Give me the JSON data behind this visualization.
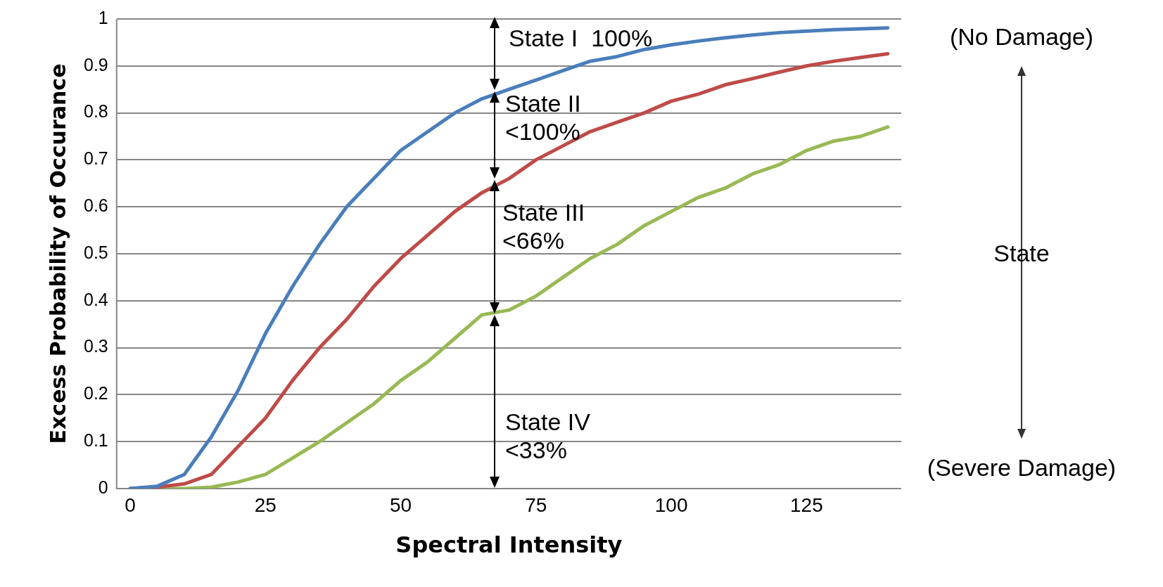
{
  "chart_data": {
    "type": "line",
    "xlabel": "Spectral Intensity",
    "ylabel": "Excess Probability of Occurance",
    "xlim": [
      -2.5,
      142.5
    ],
    "xticks": [
      0,
      25,
      50,
      75,
      100,
      125
    ],
    "ylim": [
      0,
      1
    ],
    "yticks": [
      0,
      0.1,
      0.2,
      0.3,
      0.4,
      0.5,
      0.6,
      0.7,
      0.8,
      0.9,
      1
    ],
    "x": [
      0,
      5,
      10,
      15,
      20,
      25,
      30,
      35,
      40,
      45,
      50,
      55,
      60,
      65,
      70,
      75,
      80,
      85,
      90,
      95,
      100,
      105,
      110,
      115,
      120,
      125,
      130,
      135,
      140
    ],
    "series": [
      {
        "color": "#4a7ebb",
        "values": [
          0,
          0.005,
          0.03,
          0.11,
          0.21,
          0.33,
          0.43,
          0.52,
          0.6,
          0.66,
          0.72,
          0.76,
          0.8,
          0.83,
          0.85,
          0.87,
          0.89,
          0.91,
          0.92,
          0.935,
          0.945,
          0.953,
          0.96,
          0.966,
          0.971,
          0.974,
          0.977,
          0.979,
          0.981
        ]
      },
      {
        "color": "#be4b48",
        "values": [
          0,
          0.003,
          0.01,
          0.03,
          0.09,
          0.15,
          0.23,
          0.3,
          0.36,
          0.43,
          0.49,
          0.54,
          0.59,
          0.63,
          0.66,
          0.7,
          0.73,
          0.76,
          0.78,
          0.8,
          0.825,
          0.84,
          0.86,
          0.873,
          0.887,
          0.9,
          0.91,
          0.918,
          0.926
        ]
      },
      {
        "color": "#98b954",
        "values": [
          0,
          0,
          0,
          0.003,
          0.014,
          0.03,
          0.065,
          0.1,
          0.14,
          0.18,
          0.23,
          0.27,
          0.32,
          0.37,
          0.38,
          0.41,
          0.45,
          0.49,
          0.52,
          0.56,
          0.59,
          0.62,
          0.64,
          0.67,
          0.69,
          0.72,
          0.74,
          0.75,
          0.77
        ]
      }
    ],
    "annotations": [
      "State I  100%",
      "State II\n<100%",
      "State III\n<66%",
      "State IV\n<33%",
      "(No Damage)",
      "State",
      "(Severe Damage)"
    ],
    "grid": "y",
    "legend": false,
    "marker": "none",
    "line_style": "solid"
  }
}
